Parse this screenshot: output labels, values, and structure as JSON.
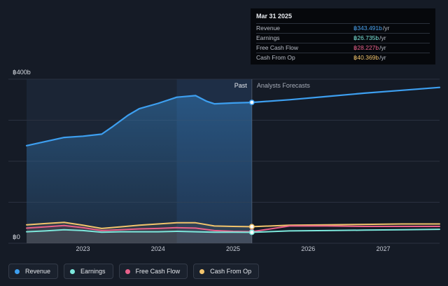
{
  "tooltip": {
    "date": "Mar 31 2025",
    "rows": [
      {
        "name": "Revenue",
        "value": "฿343.491b",
        "unit": "/yr",
        "color": "#4aa3f0"
      },
      {
        "name": "Earnings",
        "value": "฿26.735b",
        "unit": "/yr",
        "color": "#7de8dc"
      },
      {
        "name": "Free Cash Flow",
        "value": "฿28.227b",
        "unit": "/yr",
        "color": "#e8608a"
      },
      {
        "name": "Cash From Op",
        "value": "฿40.369b",
        "unit": "/yr",
        "color": "#f2c46c"
      }
    ]
  },
  "regions": {
    "past": "Past",
    "forecast": "Analysts Forecasts"
  },
  "legend": [
    {
      "label": "Revenue",
      "color": "#3d9ff0"
    },
    {
      "label": "Earnings",
      "color": "#7de8dc"
    },
    {
      "label": "Free Cash Flow",
      "color": "#e8608a"
    },
    {
      "label": "Cash From Op",
      "color": "#f2c46c"
    }
  ],
  "chart_data": {
    "type": "line",
    "y_tick_labels": [
      "฿400b",
      "฿0"
    ],
    "ylim": [
      0,
      400
    ],
    "xlim": [
      2022.25,
      2027.75
    ],
    "x_ticks": [
      2023,
      2024,
      2025,
      2026,
      2027
    ],
    "x_tick_labels": [
      "2023",
      "2024",
      "2025",
      "2026",
      "2027"
    ],
    "past_end": 2025.25,
    "highlight_band": [
      2024.25,
      2025.25
    ],
    "series": [
      {
        "name": "Revenue",
        "color": "#3d9ff0",
        "area": true,
        "points": [
          [
            2022.25,
            238
          ],
          [
            2022.5,
            248
          ],
          [
            2022.75,
            258
          ],
          [
            2023.0,
            261
          ],
          [
            2023.25,
            266
          ],
          [
            2023.4,
            285
          ],
          [
            2023.6,
            312
          ],
          [
            2023.75,
            328
          ],
          [
            2024.0,
            341
          ],
          [
            2024.25,
            356
          ],
          [
            2024.5,
            360
          ],
          [
            2024.65,
            346
          ],
          [
            2024.75,
            340
          ],
          [
            2025.0,
            342
          ],
          [
            2025.25,
            343.5
          ],
          [
            2025.75,
            350
          ],
          [
            2026.25,
            358
          ],
          [
            2026.75,
            366
          ],
          [
            2027.25,
            373
          ],
          [
            2027.75,
            380
          ]
        ]
      },
      {
        "name": "Cash From Op",
        "color": "#f2c46c",
        "area": false,
        "points": [
          [
            2022.25,
            45
          ],
          [
            2022.5,
            48
          ],
          [
            2022.75,
            51
          ],
          [
            2023.0,
            44
          ],
          [
            2023.25,
            36
          ],
          [
            2023.5,
            40
          ],
          [
            2023.75,
            44
          ],
          [
            2024.0,
            47
          ],
          [
            2024.25,
            50
          ],
          [
            2024.5,
            50
          ],
          [
            2024.75,
            42
          ],
          [
            2025.0,
            41
          ],
          [
            2025.25,
            40.4
          ],
          [
            2025.75,
            44
          ],
          [
            2026.25,
            45
          ],
          [
            2026.75,
            46
          ],
          [
            2027.25,
            47
          ],
          [
            2027.75,
            47
          ]
        ]
      },
      {
        "name": "Free Cash Flow",
        "color": "#e8608a",
        "area": false,
        "points": [
          [
            2022.25,
            37
          ],
          [
            2022.5,
            40
          ],
          [
            2022.75,
            43
          ],
          [
            2023.0,
            38
          ],
          [
            2023.25,
            31
          ],
          [
            2023.5,
            33
          ],
          [
            2023.75,
            35
          ],
          [
            2024.0,
            36
          ],
          [
            2024.25,
            38
          ],
          [
            2024.5,
            37
          ],
          [
            2024.75,
            31
          ],
          [
            2025.0,
            29
          ],
          [
            2025.25,
            28.2
          ],
          [
            2025.5,
            35
          ],
          [
            2025.75,
            42
          ],
          [
            2026.25,
            42
          ],
          [
            2026.75,
            41
          ],
          [
            2027.25,
            41
          ],
          [
            2027.75,
            41
          ]
        ]
      },
      {
        "name": "Earnings",
        "color": "#7de8dc",
        "area": false,
        "points": [
          [
            2022.25,
            28
          ],
          [
            2022.5,
            30
          ],
          [
            2022.75,
            33
          ],
          [
            2023.0,
            31
          ],
          [
            2023.25,
            27
          ],
          [
            2023.5,
            28
          ],
          [
            2023.75,
            28
          ],
          [
            2024.0,
            28
          ],
          [
            2024.25,
            29
          ],
          [
            2024.5,
            28
          ],
          [
            2024.75,
            27
          ],
          [
            2025.0,
            27
          ],
          [
            2025.25,
            26.7
          ],
          [
            2025.75,
            30
          ],
          [
            2026.25,
            31
          ],
          [
            2026.75,
            32
          ],
          [
            2027.25,
            33
          ],
          [
            2027.75,
            34
          ]
        ]
      }
    ]
  }
}
